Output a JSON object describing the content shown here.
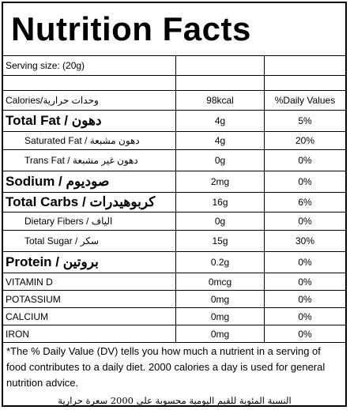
{
  "title": "Nutrition Facts",
  "serving": {
    "label": "Serving size:  (20g)"
  },
  "header": {
    "calories_label": "Calories/وحدات حرارية",
    "calories_value": "98kcal",
    "dv_header": "%Daily Values"
  },
  "rows": [
    {
      "label": "Total Fat / دهون",
      "amount": "4g",
      "dv": "5%"
    },
    {
      "label": "Saturated Fat / دهون مشبعة",
      "amount": "4g",
      "dv": "20%"
    },
    {
      "label": "Trans Fat / دهون غير مشبعة",
      "amount": "0g",
      "dv": "0%"
    },
    {
      "label": "Sodium / صوديوم",
      "amount": "2mg",
      "dv": "0%"
    },
    {
      "label": "Total Carbs / كربوهيدرات",
      "amount": "16g",
      "dv": "6%"
    },
    {
      "label": "Dietary Fibers / الياف",
      "amount": "0g",
      "dv": "0%"
    },
    {
      "label": "Total Sugar / سكر",
      "amount": "15g",
      "dv": "30%"
    },
    {
      "label": "Protein / بروتين",
      "amount": "0.2g",
      "dv": "0%"
    },
    {
      "label": "VITAMIN D",
      "amount": "0mcg",
      "dv": "0%"
    },
    {
      "label": "POTASSIUM",
      "amount": "0mg",
      "dv": "0%"
    },
    {
      "label": "CALCIUM",
      "amount": "0mg",
      "dv": "0%"
    },
    {
      "label": "IRON",
      "amount": "0mg",
      "dv": "0%"
    }
  ],
  "footnote": {
    "english": "*The % Daily Value (DV) tells you how much a nutrient in a serving of food contributes to a daily diet. 2000 calories a day is used for general nutrition advice.",
    "arabic": "النسبة المئوية للقيم اليومية محسوبة على 2000 سعرة حرارية"
  }
}
